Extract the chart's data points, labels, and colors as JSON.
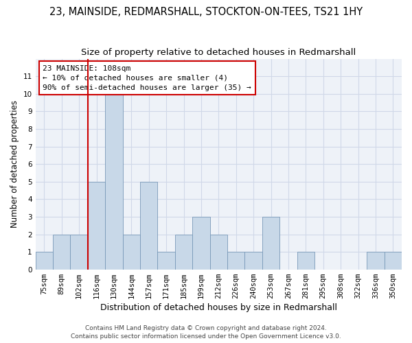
{
  "title_line1": "23, MAINSIDE, REDMARSHALL, STOCKTON-ON-TEES, TS21 1HY",
  "title_line2": "Size of property relative to detached houses in Redmarshall",
  "xlabel": "Distribution of detached houses by size in Redmarshall",
  "ylabel": "Number of detached properties",
  "categories": [
    "75sqm",
    "89sqm",
    "102sqm",
    "116sqm",
    "130sqm",
    "144sqm",
    "157sqm",
    "171sqm",
    "185sqm",
    "199sqm",
    "212sqm",
    "226sqm",
    "240sqm",
    "253sqm",
    "267sqm",
    "281sqm",
    "295sqm",
    "308sqm",
    "322sqm",
    "336sqm",
    "350sqm"
  ],
  "values": [
    1,
    2,
    2,
    5,
    10,
    2,
    5,
    1,
    2,
    3,
    2,
    1,
    1,
    3,
    0,
    1,
    0,
    0,
    0,
    1,
    1
  ],
  "bar_color": "#c8d8e8",
  "bar_edgecolor": "#7898b8",
  "red_line_x": 2.5,
  "annotation_line1": "23 MAINSIDE: 108sqm",
  "annotation_line2": "← 10% of detached houses are smaller (4)",
  "annotation_line3": "90% of semi-detached houses are larger (35) →",
  "annotation_box_color": "#ffffff",
  "annotation_box_edgecolor": "#cc0000",
  "ylim": [
    0,
    12
  ],
  "yticks": [
    0,
    1,
    2,
    3,
    4,
    5,
    6,
    7,
    8,
    9,
    10,
    11,
    12
  ],
  "grid_color": "#d0d8e8",
  "background_color": "#eef2f8",
  "footer_line1": "Contains HM Land Registry data © Crown copyright and database right 2024.",
  "footer_line2": "Contains public sector information licensed under the Open Government Licence v3.0.",
  "title_fontsize": 10.5,
  "subtitle_fontsize": 9.5,
  "ylabel_fontsize": 8.5,
  "xlabel_fontsize": 9,
  "tick_fontsize": 7.5,
  "annotation_fontsize": 8,
  "footer_fontsize": 6.5
}
